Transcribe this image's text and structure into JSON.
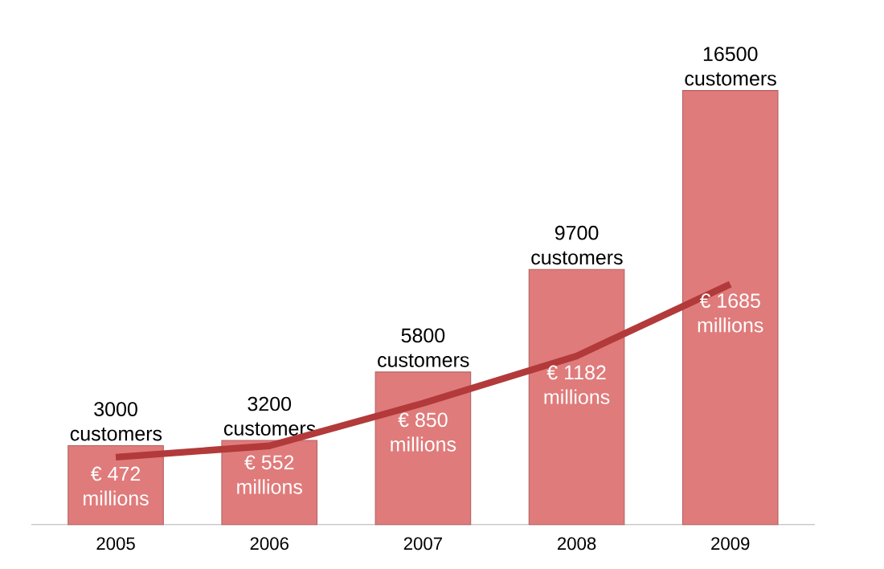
{
  "chart_data": {
    "type": "bar",
    "categories": [
      "2005",
      "2006",
      "2007",
      "2008",
      "2009"
    ],
    "series": [
      {
        "color": "#e07b7b",
        "values": [
          3000,
          3200,
          5800,
          9700,
          16500
        ],
        "value_labels": [
          "3000 customers",
          "3200 customers",
          "5800 customers",
          "9700 customers",
          "16500 customers"
        ]
      },
      {
        "type": "line",
        "axis": "y2",
        "color": "#b33a3a",
        "values": [
          472,
          552,
          850,
          1182,
          1685
        ],
        "value_labels": [
          "€ 472 millions",
          "€ 552 millions",
          "€ 850 millions",
          "€ 1182 millions",
          "€ 1685 millions"
        ]
      }
    ],
    "tick_labels": "x",
    "marker": "none"
  }
}
